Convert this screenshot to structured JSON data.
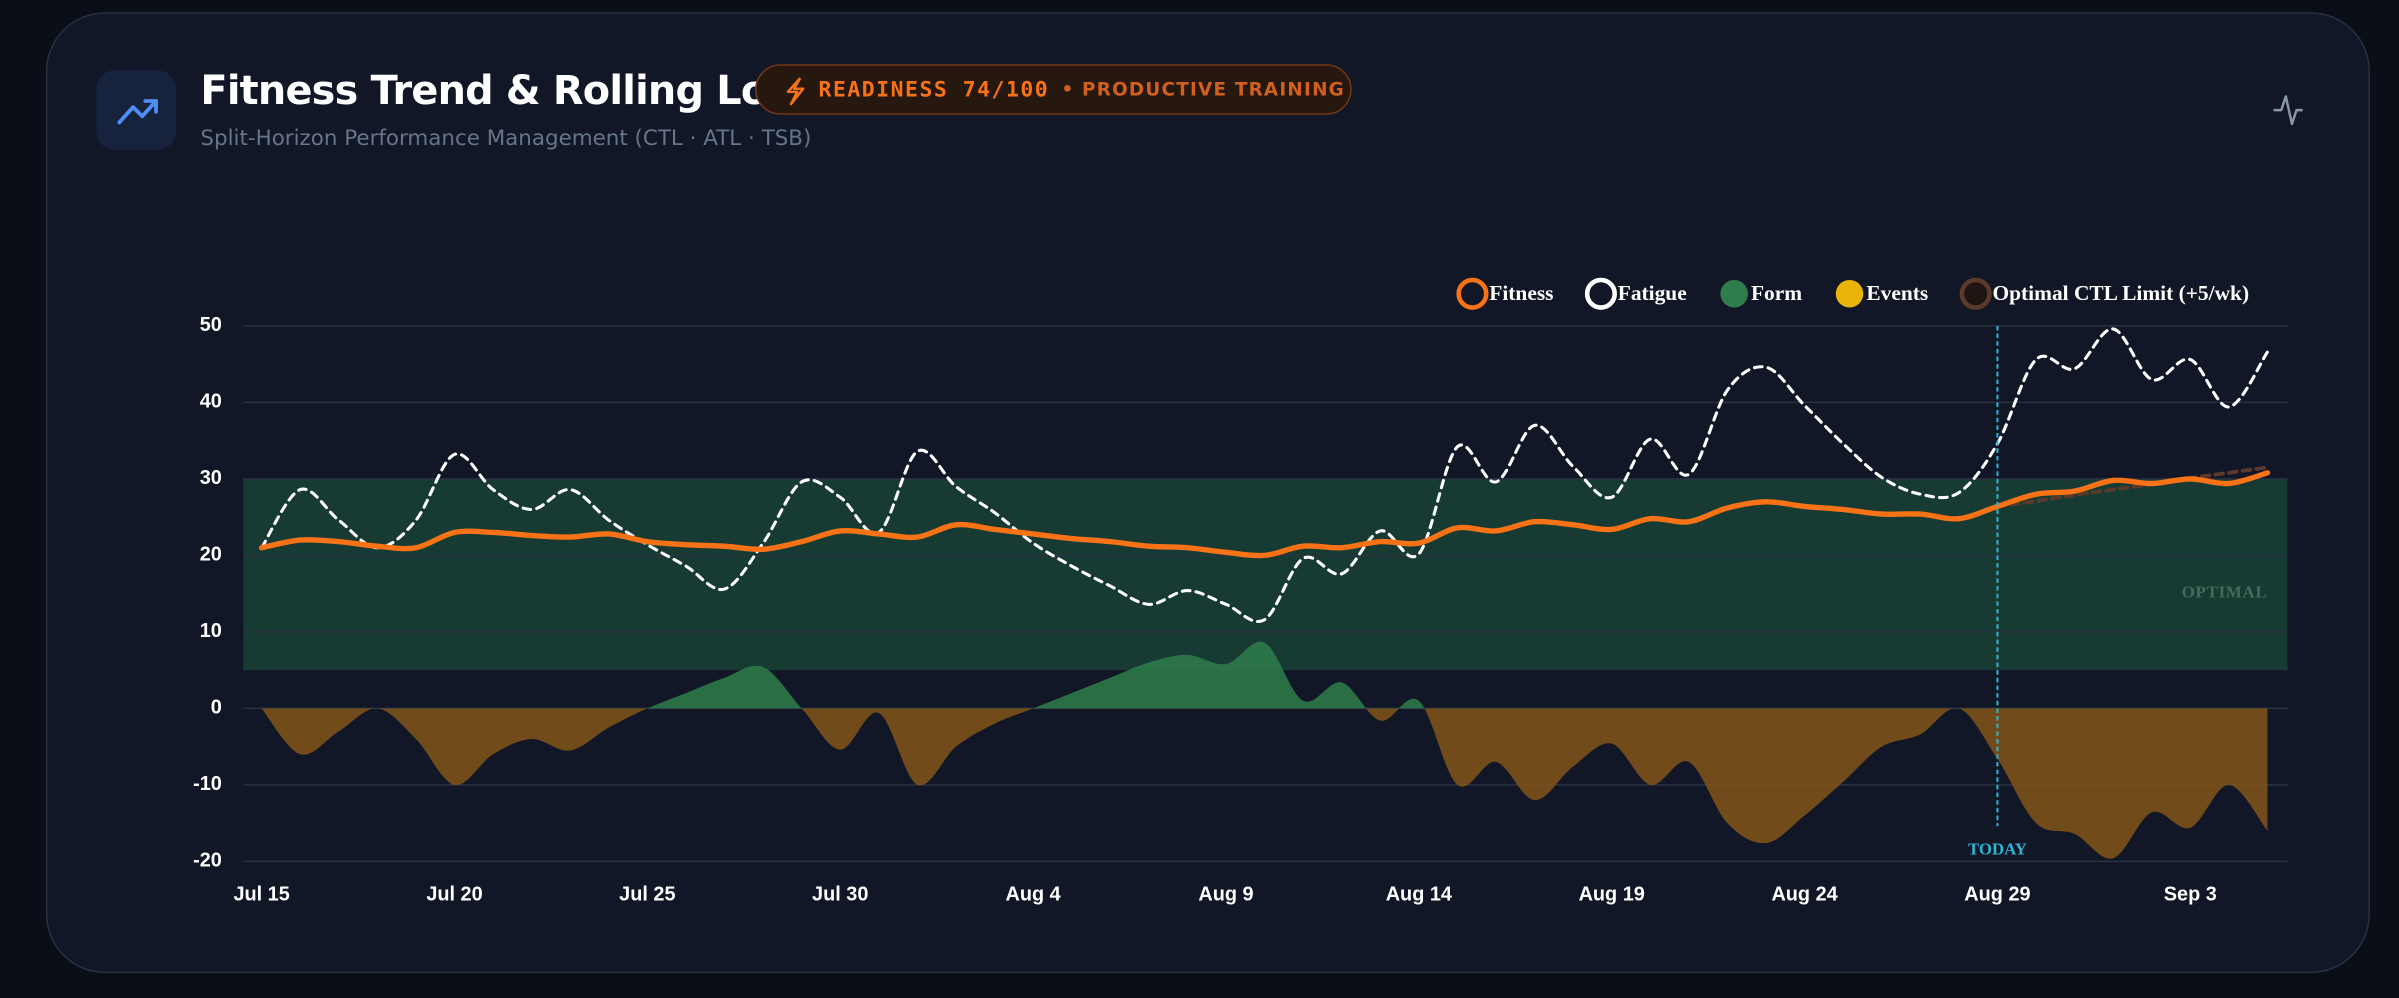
{
  "header": {
    "title": "Fitness Trend & Rolling Load",
    "badge": "READINESS 74/100",
    "badge_note": "• PRODUCTIVE TRAINING",
    "subtitle": "Split-Horizon Performance Management (CTL · ATL · TSB)"
  },
  "chart_data": {
    "type": "line",
    "categories": [
      "Jul 15",
      null,
      null,
      null,
      null,
      "Jul 20",
      null,
      null,
      null,
      null,
      "Jul 25",
      null,
      null,
      null,
      null,
      "Jul 30",
      null,
      null,
      null,
      null,
      "Aug 4",
      null,
      null,
      null,
      null,
      "Aug 9",
      null,
      null,
      null,
      null,
      "Aug 14",
      null,
      null,
      null,
      null,
      "Aug 19",
      null,
      null,
      null,
      null,
      "Aug 24",
      null,
      null,
      null,
      null,
      "Aug 29",
      null,
      null,
      null,
      null,
      "Sep 3",
      null,
      null
    ],
    "series": [
      {
        "name": "Fitness",
        "type": "line",
        "color": "#f97316",
        "style": "solid",
        "values": [
          21,
          22,
          21.8,
          21.2,
          21,
          23,
          23,
          22.6,
          22.4,
          22.8,
          21.8,
          21.4,
          21.2,
          20.8,
          21.8,
          23.2,
          22.8,
          22.4,
          24,
          23.4,
          22.8,
          22.2,
          21.8,
          21.2,
          21,
          20.4,
          20,
          21.2,
          21,
          21.8,
          21.6,
          23.6,
          23.2,
          24.4,
          24,
          23.4,
          24.8,
          24.4,
          26.2,
          27,
          26.4,
          26,
          25.4,
          25.4,
          24.8,
          26.4,
          28,
          28.4,
          29.8,
          29.4,
          30,
          29.4,
          30.8
        ]
      },
      {
        "name": "Fatigue",
        "type": "line",
        "color": "#ffffff",
        "style": "dashed",
        "values": [
          21,
          28.6,
          24.6,
          21,
          24.6,
          33.2,
          28.6,
          26,
          28.6,
          24.6,
          21.4,
          18.6,
          15.6,
          21.6,
          29.6,
          27.6,
          23,
          33.6,
          29,
          25.6,
          21.6,
          18.6,
          16,
          13.6,
          15.4,
          13.6,
          11.6,
          19.6,
          17.6,
          23.2,
          20.2,
          34.2,
          29.6,
          37,
          31.6,
          27.6,
          35.2,
          30.6,
          41.6,
          44.6,
          39.6,
          34.6,
          30.2,
          28,
          28.2,
          34.6,
          45.6,
          44.4,
          49.6,
          43,
          45.6,
          39.4,
          46.6
        ]
      },
      {
        "name": "Form",
        "type": "area",
        "color": "#2e7d4a",
        "negative_color": "#7c5118",
        "values": [
          0,
          -6,
          -3,
          0,
          -4,
          -10,
          -6,
          -4,
          -5.5,
          -2.5,
          0,
          2,
          4,
          5.4,
          0,
          -5.4,
          -0.6,
          -10,
          -5,
          -2,
          0,
          2,
          4,
          6,
          7,
          5.8,
          8.6,
          1,
          3.4,
          -1.6,
          1,
          -10,
          -7,
          -12,
          -7.6,
          -4.6,
          -10,
          -7,
          -15,
          -17.6,
          -14,
          -9.6,
          -5,
          -3.4,
          0,
          -6.6,
          -15,
          -16.4,
          -19.6,
          -13.6,
          -15.6,
          -10,
          -16
        ]
      },
      {
        "name": "Events",
        "type": "point",
        "color": "#eab308",
        "values": [
          null,
          null,
          null,
          null,
          null,
          null,
          null,
          null,
          null,
          null,
          null,
          null,
          null,
          null,
          null,
          null,
          null,
          null,
          null,
          null,
          null,
          null,
          null,
          null,
          null,
          null,
          null,
          null,
          null,
          null,
          null,
          null,
          null,
          null,
          null,
          null,
          null,
          null,
          null,
          null,
          null,
          null,
          null,
          null,
          null,
          null,
          null,
          null,
          null,
          null,
          null,
          null,
          null
        ]
      },
      {
        "name": "Optimal CTL Limit (+5/wk)",
        "type": "line",
        "color": "#5b3a2c",
        "style": "dashed",
        "values": [
          null,
          null,
          null,
          null,
          null,
          null,
          null,
          null,
          null,
          null,
          null,
          null,
          null,
          null,
          null,
          null,
          null,
          null,
          null,
          null,
          null,
          null,
          null,
          null,
          null,
          null,
          null,
          null,
          null,
          null,
          null,
          null,
          null,
          null,
          null,
          null,
          null,
          null,
          null,
          null,
          null,
          null,
          null,
          null,
          null,
          26.4,
          27.1,
          27.9,
          28.6,
          29.3,
          30.1,
          30.8,
          31.5
        ]
      }
    ],
    "ylim": [
      -20,
      50
    ],
    "yticks": [
      -20,
      -10,
      0,
      10,
      20,
      30,
      40,
      50
    ],
    "grid": true,
    "legend": "top-right",
    "optimal_band": {
      "range": [
        5,
        30
      ],
      "label": "OPTIMAL"
    },
    "today": {
      "category": "Aug 29",
      "label": "TODAY"
    }
  }
}
